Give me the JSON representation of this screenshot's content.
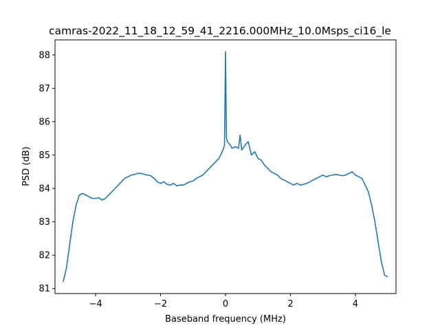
{
  "chart_data": {
    "type": "line",
    "title": "camras-2022_11_18_12_59_41_2216.000MHz_10.0Msps_ci16_le",
    "xlabel": "Baseband frequency (MHz)",
    "ylabel": "PSD (dB)",
    "xlim": [
      -5.25,
      5.25
    ],
    "ylim": [
      80.85,
      88.45
    ],
    "xticks": [
      -4,
      -2,
      0,
      2,
      4
    ],
    "xtick_labels": [
      "−4",
      "−2",
      "0",
      "2",
      "4"
    ],
    "yticks": [
      81,
      82,
      83,
      84,
      85,
      86,
      87,
      88
    ],
    "ytick_labels": [
      "81",
      "82",
      "83",
      "84",
      "85",
      "86",
      "87",
      "88"
    ],
    "grid": false,
    "series": [
      {
        "color": "#1f77b4",
        "x": [
          -5.0,
          -4.9,
          -4.8,
          -4.7,
          -4.6,
          -4.5,
          -4.4,
          -4.3,
          -4.2,
          -4.1,
          -4.0,
          -3.9,
          -3.8,
          -3.7,
          -3.6,
          -3.5,
          -3.4,
          -3.3,
          -3.2,
          -3.1,
          -3.0,
          -2.9,
          -2.8,
          -2.7,
          -2.6,
          -2.5,
          -2.4,
          -2.3,
          -2.2,
          -2.1,
          -2.0,
          -1.9,
          -1.8,
          -1.7,
          -1.6,
          -1.5,
          -1.4,
          -1.3,
          -1.2,
          -1.1,
          -1.0,
          -0.9,
          -0.8,
          -0.7,
          -0.6,
          -0.5,
          -0.4,
          -0.3,
          -0.2,
          -0.15,
          -0.1,
          -0.06,
          -0.03,
          0.0,
          0.03,
          0.06,
          0.1,
          0.15,
          0.2,
          0.3,
          0.4,
          0.45,
          0.5,
          0.6,
          0.7,
          0.8,
          0.9,
          1.0,
          1.1,
          1.2,
          1.3,
          1.4,
          1.5,
          1.6,
          1.7,
          1.8,
          1.9,
          2.0,
          2.1,
          2.2,
          2.3,
          2.4,
          2.5,
          2.6,
          2.7,
          2.8,
          2.9,
          3.0,
          3.1,
          3.2,
          3.3,
          3.4,
          3.5,
          3.6,
          3.7,
          3.8,
          3.9,
          4.0,
          4.1,
          4.2,
          4.3,
          4.4,
          4.5,
          4.6,
          4.7,
          4.8,
          4.9,
          5.0
        ],
        "y": [
          81.2,
          81.6,
          82.3,
          83.0,
          83.5,
          83.8,
          83.85,
          83.8,
          83.75,
          83.7,
          83.7,
          83.72,
          83.65,
          83.7,
          83.8,
          83.9,
          84.0,
          84.1,
          84.2,
          84.3,
          84.35,
          84.4,
          84.42,
          84.45,
          84.45,
          84.42,
          84.4,
          84.38,
          84.3,
          84.2,
          84.15,
          84.2,
          84.12,
          84.1,
          84.15,
          84.08,
          84.1,
          84.1,
          84.15,
          84.2,
          84.22,
          84.3,
          84.35,
          84.4,
          84.5,
          84.6,
          84.7,
          84.8,
          84.9,
          85.0,
          85.1,
          85.2,
          85.3,
          88.1,
          85.5,
          85.4,
          85.35,
          85.3,
          85.2,
          85.25,
          85.2,
          85.6,
          85.15,
          85.3,
          85.4,
          85.0,
          85.1,
          84.9,
          84.85,
          84.7,
          84.6,
          84.5,
          84.45,
          84.4,
          84.3,
          84.25,
          84.2,
          84.15,
          84.1,
          84.15,
          84.1,
          84.12,
          84.15,
          84.2,
          84.25,
          84.3,
          84.35,
          84.4,
          84.35,
          84.38,
          84.4,
          84.42,
          84.4,
          84.38,
          84.4,
          84.45,
          84.5,
          84.4,
          84.35,
          84.3,
          84.1,
          83.9,
          83.5,
          83.0,
          82.4,
          81.8,
          81.4,
          81.35
        ]
      }
    ]
  }
}
